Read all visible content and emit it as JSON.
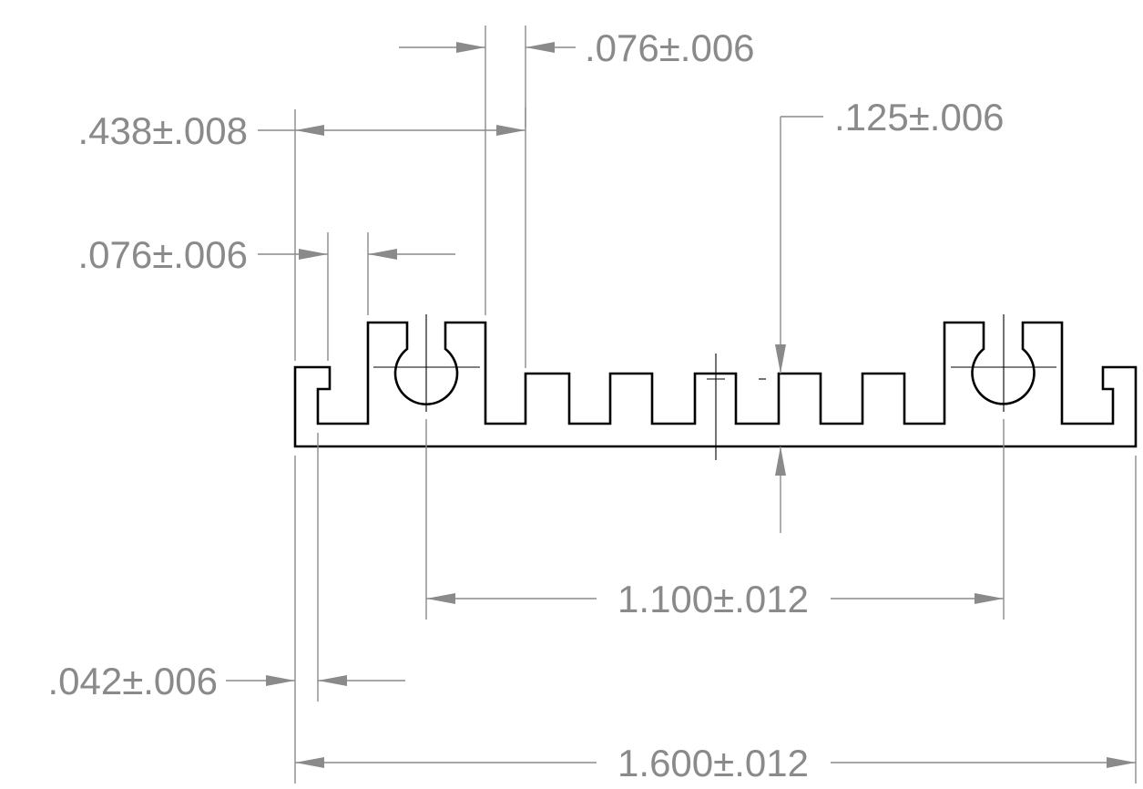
{
  "dimensions": {
    "top_slot_width": ".076±.006",
    "tab_to_slot": ".438±.008",
    "groove_depth": ".125±.006",
    "tab_width": ".076±.006",
    "hole_spacing": "1.100±.012",
    "lip_width": ".042±.006",
    "overall_width": "1.600±.012"
  },
  "colors": {
    "part_outline": "#000000",
    "dimension": "#8a8a8a",
    "background": "#ffffff"
  }
}
